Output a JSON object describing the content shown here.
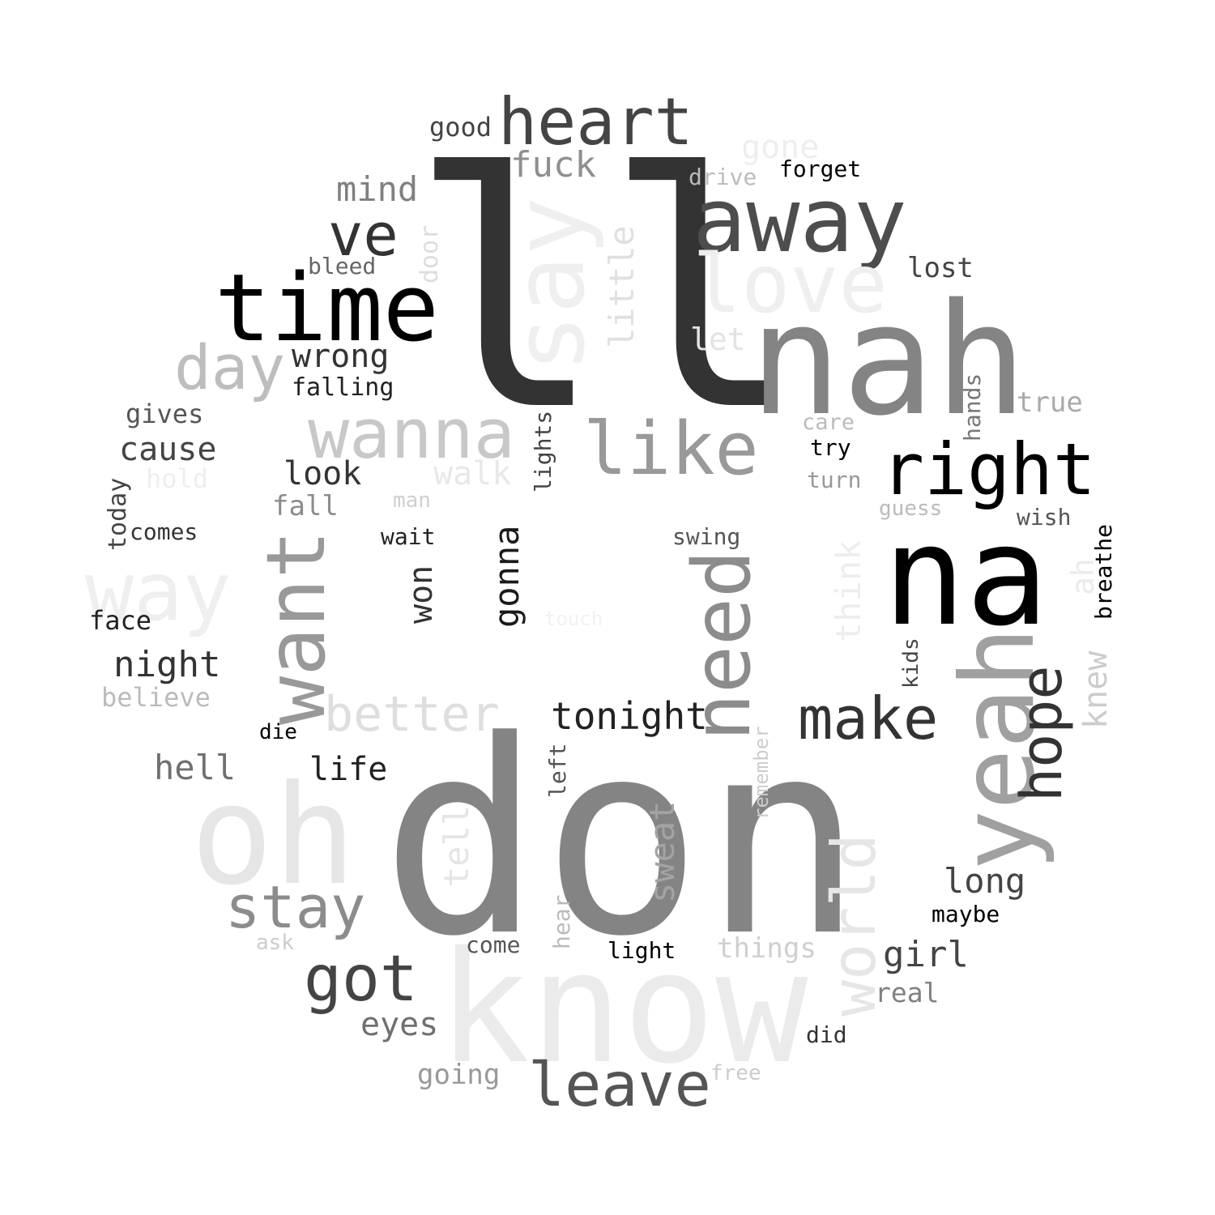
{
  "words": [
    {
      "text": "ll",
      "color": "#333333",
      "weight": 100
    },
    {
      "text": "don",
      "color": "#848484",
      "weight": 98
    },
    {
      "text": "know",
      "color": "#ebebeb",
      "weight": 70
    },
    {
      "text": "nah",
      "color": "#848484",
      "weight": 62
    },
    {
      "text": "na",
      "color": "#000000",
      "weight": 60
    },
    {
      "text": "oh",
      "color": "#e6e6e6",
      "weight": 58
    },
    {
      "text": "say",
      "color": "#efefef",
      "weight": 55
    },
    {
      "text": "time",
      "color": "#000000",
      "weight": 52
    },
    {
      "text": "yeah",
      "color": "#a0a0a0",
      "weight": 50
    },
    {
      "text": "away",
      "color": "#4d4d4d",
      "weight": 48
    },
    {
      "text": "love",
      "color": "#efefef",
      "weight": 46
    },
    {
      "text": "want",
      "color": "#999999",
      "weight": 44
    },
    {
      "text": "need",
      "color": "#8c8c8c",
      "weight": 42
    },
    {
      "text": "way",
      "color": "#efefef",
      "weight": 40
    },
    {
      "text": "like",
      "color": "#999999",
      "weight": 40
    },
    {
      "text": "wanna",
      "color": "#c8c8c8",
      "weight": 38
    },
    {
      "text": "world",
      "color": "#e6e6e6",
      "weight": 36
    },
    {
      "text": "right",
      "color": "#000000",
      "weight": 36
    },
    {
      "text": "heart",
      "color": "#444444",
      "weight": 34
    },
    {
      "text": "day",
      "color": "#bdbdbd",
      "weight": 34
    },
    {
      "text": "hope",
      "color": "#333333",
      "weight": 32
    },
    {
      "text": "make",
      "color": "#333333",
      "weight": 30
    },
    {
      "text": "stay",
      "color": "#8c8c8c",
      "weight": 30
    },
    {
      "text": "got",
      "color": "#444444",
      "weight": 30
    },
    {
      "text": "leave",
      "color": "#555555",
      "weight": 30
    },
    {
      "text": "ve",
      "color": "#333333",
      "weight": 28
    },
    {
      "text": "better",
      "color": "#dedede",
      "weight": 26
    },
    {
      "text": "little",
      "color": "#e0e0e0",
      "weight": 20
    },
    {
      "text": "sweat",
      "color": "#a3a3a3",
      "weight": 20
    },
    {
      "text": "think",
      "color": "#ededed",
      "weight": 20
    },
    {
      "text": "gonna",
      "color": "#1a1a1a",
      "weight": 20
    },
    {
      "text": "tonight",
      "color": "#222222",
      "weight": 20
    },
    {
      "text": "tell",
      "color": "#e5e5e5",
      "weight": 20
    },
    {
      "text": "fuck",
      "color": "#8f8f8f",
      "weight": 20
    },
    {
      "text": "girl",
      "color": "#444444",
      "weight": 20
    },
    {
      "text": "long",
      "color": "#444444",
      "weight": 19
    },
    {
      "text": "night",
      "color": "#333333",
      "weight": 18
    },
    {
      "text": "wrong",
      "color": "#333333",
      "weight": 18
    },
    {
      "text": "mind",
      "color": "#808080",
      "weight": 18
    },
    {
      "text": "won",
      "color": "#333333",
      "weight": 18
    },
    {
      "text": "life",
      "color": "#222222",
      "weight": 18
    },
    {
      "text": "cause",
      "color": "#444444",
      "weight": 18
    },
    {
      "text": "look",
      "color": "#333333",
      "weight": 18
    },
    {
      "text": "hell",
      "color": "#707070",
      "weight": 18
    },
    {
      "text": "eyes",
      "color": "#707070",
      "weight": 18
    },
    {
      "text": "gone",
      "color": "#eeeeee",
      "weight": 17
    },
    {
      "text": "knew",
      "color": "#cccccc",
      "weight": 17
    },
    {
      "text": "walk",
      "color": "#e8e8e8",
      "weight": 17
    },
    {
      "text": "let",
      "color": "#e3e3e3",
      "weight": 17
    },
    {
      "text": "ah",
      "color": "#ebebeb",
      "weight": 16
    },
    {
      "text": "lost",
      "color": "#444444",
      "weight": 15
    },
    {
      "text": "true",
      "color": "#aaaaaa",
      "weight": 15
    },
    {
      "text": "good",
      "color": "#444444",
      "weight": 15
    },
    {
      "text": "fall",
      "color": "#8c8c8c",
      "weight": 15
    },
    {
      "text": "going",
      "color": "#999999",
      "weight": 15
    },
    {
      "text": "gives",
      "color": "#555555",
      "weight": 14
    },
    {
      "text": "falling",
      "color": "#222222",
      "weight": 14
    },
    {
      "text": "face",
      "color": "#222222",
      "weight": 14
    },
    {
      "text": "believe",
      "color": "#bbbbbb",
      "weight": 14
    },
    {
      "text": "things",
      "color": "#cfcfcf",
      "weight": 14
    },
    {
      "text": "real",
      "color": "#808080",
      "weight": 14
    },
    {
      "text": "today",
      "color": "#444444",
      "weight": 13
    },
    {
      "text": "forget",
      "color": "#000000",
      "weight": 13
    },
    {
      "text": "hold",
      "color": "#eeeeee",
      "weight": 13
    },
    {
      "text": "door",
      "color": "#dddddd",
      "weight": 13
    },
    {
      "text": "lights",
      "color": "#444444",
      "weight": 13
    },
    {
      "text": "drive",
      "color": "#bbbbbb",
      "weight": 13
    },
    {
      "text": "wish",
      "color": "#555555",
      "weight": 13
    },
    {
      "text": "bleed",
      "color": "#666666",
      "weight": 13
    },
    {
      "text": "care",
      "color": "#bbbbbb",
      "weight": 13
    },
    {
      "text": "try",
      "color": "#000000",
      "weight": 13
    },
    {
      "text": "turn",
      "color": "#999999",
      "weight": 13
    },
    {
      "text": "hands",
      "color": "#777777",
      "weight": 13
    },
    {
      "text": "breathe",
      "color": "#000000",
      "weight": 13
    },
    {
      "text": "swing",
      "color": "#555555",
      "weight": 13
    },
    {
      "text": "comes",
      "color": "#333333",
      "weight": 13
    },
    {
      "text": "wait",
      "color": "#222222",
      "weight": 13
    },
    {
      "text": "left",
      "color": "#555555",
      "weight": 13
    },
    {
      "text": "did",
      "color": "#333333",
      "weight": 13
    },
    {
      "text": "light",
      "color": "#000000",
      "weight": 13
    },
    {
      "text": "come",
      "color": "#555555",
      "weight": 13
    },
    {
      "text": "hear",
      "color": "#bbbbbb",
      "weight": 13
    },
    {
      "text": "maybe",
      "color": "#000000",
      "weight": 13
    },
    {
      "text": "kids",
      "color": "#444444",
      "weight": 12
    },
    {
      "text": "guess",
      "color": "#bbbbbb",
      "weight": 12
    },
    {
      "text": "man",
      "color": "#cfcfcf",
      "weight": 12
    },
    {
      "text": "die",
      "color": "#000000",
      "weight": 12
    },
    {
      "text": "ask",
      "color": "#cccccc",
      "weight": 12
    },
    {
      "text": "free",
      "color": "#cccccc",
      "weight": 12
    },
    {
      "text": "remember",
      "color": "#cccccc",
      "weight": 11
    },
    {
      "text": "touch",
      "color": "#f2f2f2",
      "weight": 11
    }
  ]
}
